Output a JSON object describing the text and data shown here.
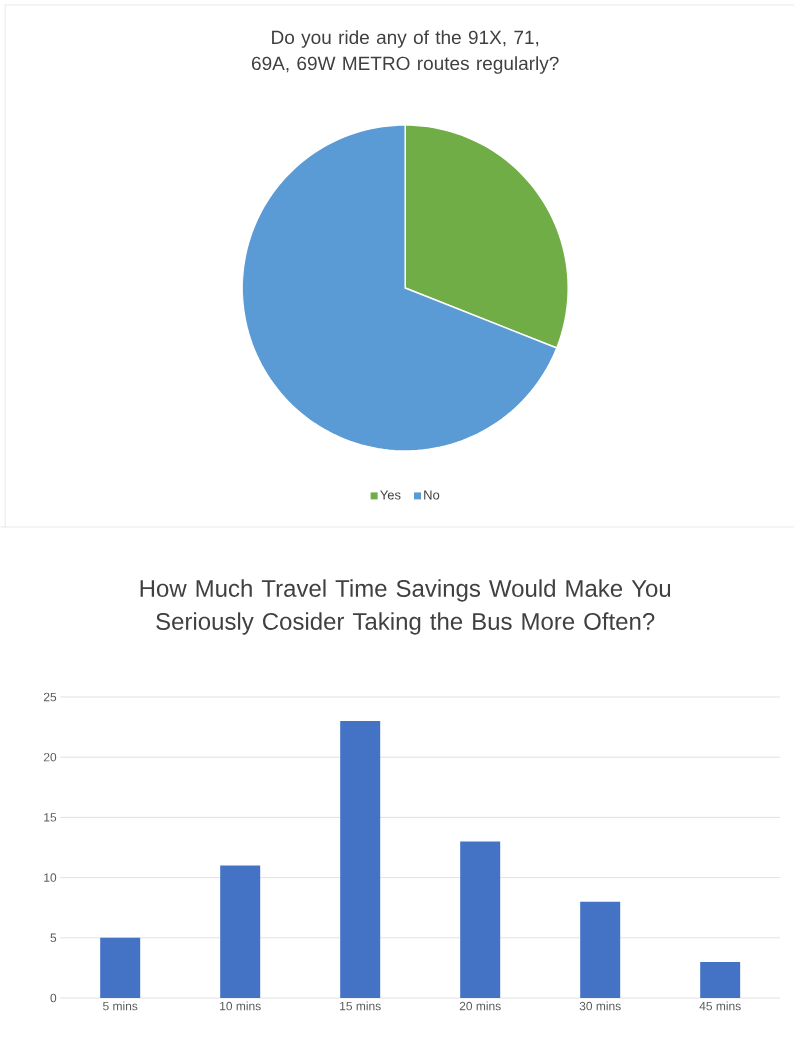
{
  "chart_data": [
    {
      "type": "pie",
      "title": "Do you ride any of the 91X, 71, 69A, 69W METRO routes regularly?",
      "categories": [
        "Yes",
        "No"
      ],
      "values": [
        31,
        69
      ],
      "colors": [
        "#70ad47",
        "#5b9bd5"
      ],
      "legend": "bottom"
    },
    {
      "type": "bar",
      "title": "How Much Travel Time Savings Would Make You Seriously Cosider Taking the Bus More Often?",
      "categories": [
        "5 mins",
        "10 mins",
        "15 mins",
        "20 mins",
        "30 mins",
        "45 mins"
      ],
      "values": [
        5,
        11,
        23,
        13,
        8,
        3
      ],
      "color": "#4472c4",
      "ylim": [
        0,
        25
      ],
      "yticks": [
        0,
        5,
        10,
        15,
        20,
        25
      ],
      "grid": "y"
    }
  ]
}
